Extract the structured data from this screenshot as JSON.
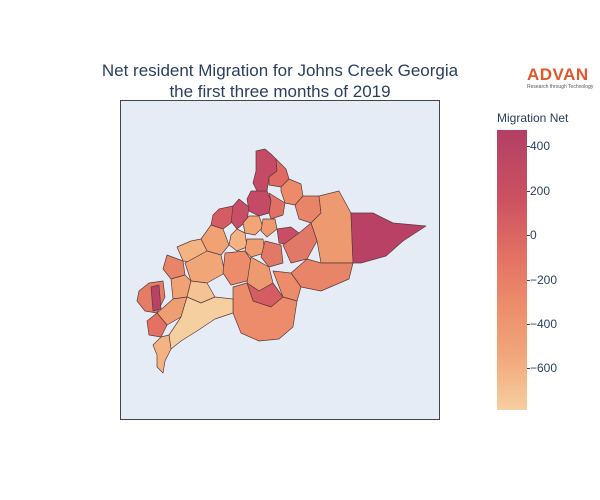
{
  "title": {
    "line1": "Net resident Migration for Johns Creek Georgia",
    "line2": "the first three months of 2019"
  },
  "logo": {
    "word": "ADVAN",
    "tagline": "Research through Technology",
    "color": "#e2572b"
  },
  "colorbar": {
    "title": "Migration Net",
    "ticks": [
      "400",
      "200",
      "0",
      "−200",
      "−400",
      "−600"
    ],
    "range": [
      -780,
      480
    ],
    "colorscale": [
      "#f6cfa1",
      "#f1a678",
      "#ec8c6a",
      "#e37164",
      "#cc5261",
      "#b33f65"
    ]
  },
  "map": {
    "background": "#e5ecf6",
    "border_color": "#444444"
  }
}
